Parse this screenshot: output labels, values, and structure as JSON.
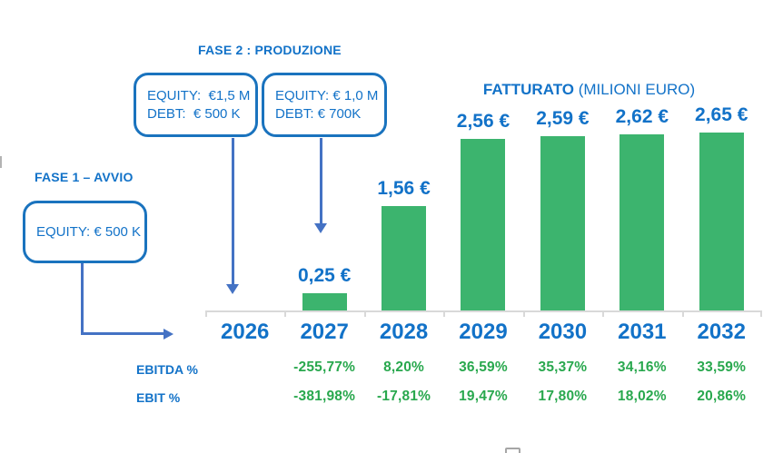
{
  "annotations": {
    "phase2": {
      "title": "FASE 2 : PRODUZIONE",
      "box1": {
        "line1": "EQUITY:  €1,5 M",
        "line2": "DEBT:  € 500 K"
      },
      "box2": {
        "line1": "EQUITY: € 1,0 M",
        "line2": "DEBT: € 700K"
      }
    },
    "phase1": {
      "title": "FASE 1 – AVVIO",
      "box": {
        "line1": "EQUITY: € 500 K"
      }
    }
  },
  "chart_data": {
    "type": "bar",
    "title": "FATTURATO",
    "subtitle": " (MILIONI EURO)",
    "categories": [
      "2026",
      "2027",
      "2028",
      "2029",
      "2030",
      "2031",
      "2032"
    ],
    "values": [
      null,
      0.25,
      1.56,
      2.56,
      2.59,
      2.62,
      2.65
    ],
    "bar_labels": [
      "",
      "0,25 €",
      "1,56 €",
      "2,56 €",
      "2,59 €",
      "2,62 €",
      "2,65 €"
    ],
    "ylim": [
      0,
      2.65
    ],
    "grid": false,
    "legend": false,
    "xlabel": "",
    "ylabel": "",
    "rows": [
      {
        "label": "EBITDA %",
        "values": [
          "",
          "-255,77%",
          "8,20%",
          "36,59%",
          "35,37%",
          "34,16%",
          "33,59%"
        ]
      },
      {
        "label": "EBIT %",
        "values": [
          "",
          "-381,98%",
          "-17,81%",
          "19,47%",
          "17,80%",
          "18,02%",
          "20,86%"
        ]
      }
    ]
  },
  "colors": {
    "accent_blue": "#1272c8",
    "box_border_blue": "#1a73be",
    "arrow_blue": "#4472c4",
    "bar_green": "#3cb46e",
    "value_green": "#29a84e",
    "axis_gray": "#d9d9d9"
  }
}
